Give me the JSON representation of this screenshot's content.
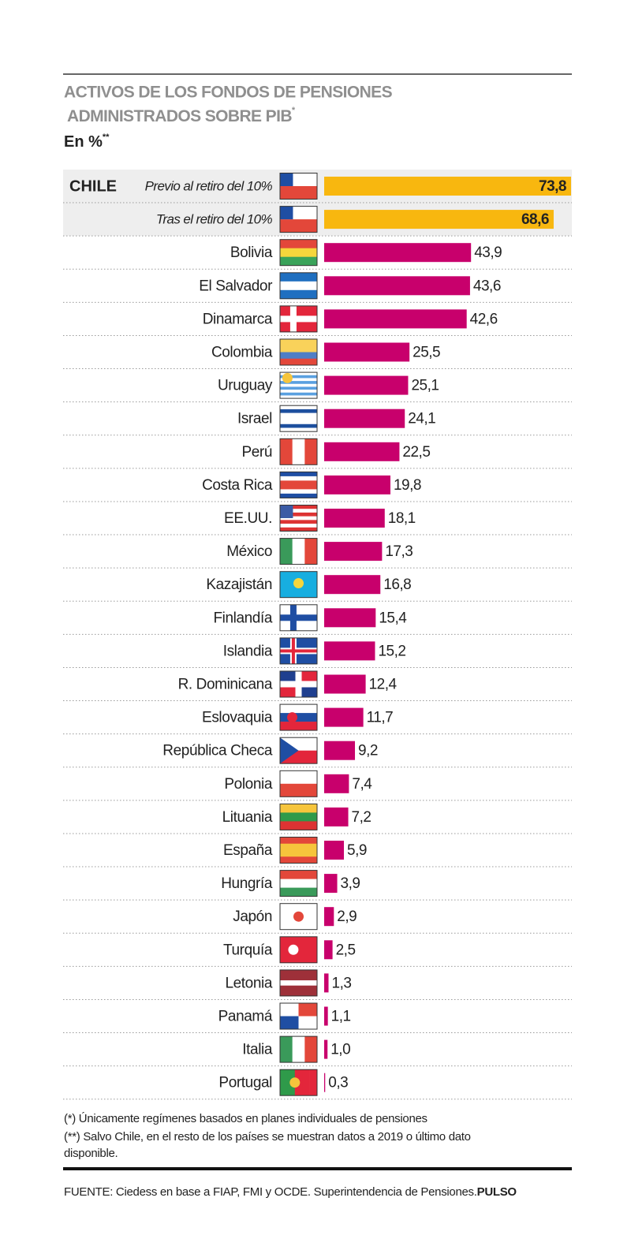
{
  "chart_data": {
    "type": "bar",
    "orientation": "horizontal",
    "title": [
      "ACTIVOS DE LOS FONDOS DE PENSIONES",
      "ADMINISTRADOS SOBRE PIB"
    ],
    "title_mark": "*",
    "subtitle": "En %",
    "subtitle_mark": "**",
    "group_label": "CHILE",
    "categories": [
      "Previo al retiro del 10%",
      "Tras el retiro del 10%",
      "Bolivia",
      "El Salvador",
      "Dinamarca",
      "Colombia",
      "Uruguay",
      "Israel",
      "Perú",
      "Costa Rica",
      "EE.UU.",
      "México",
      "Kazajistán",
      "Finlandía",
      "Islandia",
      "R. Dominicana",
      "Eslovaquia",
      "República Checa",
      "Polonia",
      "Lituania",
      "España",
      "Hungría",
      "Japón",
      "Turquía",
      "Letonia",
      "Panamá",
      "Italia",
      "Portugal"
    ],
    "values": [
      73.8,
      68.6,
      43.9,
      43.6,
      42.6,
      25.5,
      25.1,
      24.1,
      22.5,
      19.8,
      18.1,
      17.3,
      16.8,
      15.4,
      15.2,
      12.4,
      11.7,
      9.2,
      7.4,
      7.2,
      5.9,
      3.9,
      2.9,
      2.5,
      1.3,
      1.1,
      1.0,
      0.3
    ],
    "value_labels": [
      "73,8",
      "68,6",
      "43,9",
      "43,6",
      "42,6",
      "25,5",
      "25,1",
      "24,1",
      "22,5",
      "19,8",
      "18,1",
      "17,3",
      "16,8",
      "15,4",
      "15,2",
      "12,4",
      "11,7",
      "9,2",
      "7,4",
      "7,2",
      "5,9",
      "3,9",
      "2,9",
      "2,5",
      "1,3",
      "1,1",
      "1,0",
      "0,3"
    ],
    "colors": [
      "#f8b70f",
      "#f8b70f",
      "#c8006c",
      "#c8006c",
      "#c8006c",
      "#c8006c",
      "#c8006c",
      "#c8006c",
      "#c8006c",
      "#c8006c",
      "#c8006c",
      "#c8006c",
      "#c8006c",
      "#c8006c",
      "#c8006c",
      "#c8006c",
      "#c8006c",
      "#c8006c",
      "#c8006c",
      "#c8006c",
      "#c8006c",
      "#c8006c",
      "#c8006c",
      "#c8006c",
      "#c8006c",
      "#c8006c",
      "#c8006c",
      "#c8006c"
    ],
    "footnotes": [
      "(*) Únicamente regímenes basados en planes individuales de pensiones",
      "(**) Salvo Chile, en el resto de los países se muestran datos a 2019 o último dato disponible."
    ],
    "source": "FUENTE: Ciedess en base a FIAP, FMI y OCDE. Superintendencia de Pensiones.",
    "brand": "PULSO"
  }
}
